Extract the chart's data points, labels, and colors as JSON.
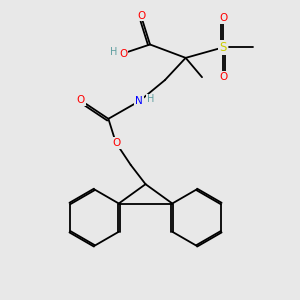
{
  "background_color": "#e8e8e8",
  "atom_colors": {
    "O": "#ff0000",
    "N": "#0000ff",
    "S": "#cccc00",
    "C": "#000000",
    "H": "#5f9ea0"
  },
  "figsize": [
    3.0,
    3.0
  ],
  "dpi": 100
}
